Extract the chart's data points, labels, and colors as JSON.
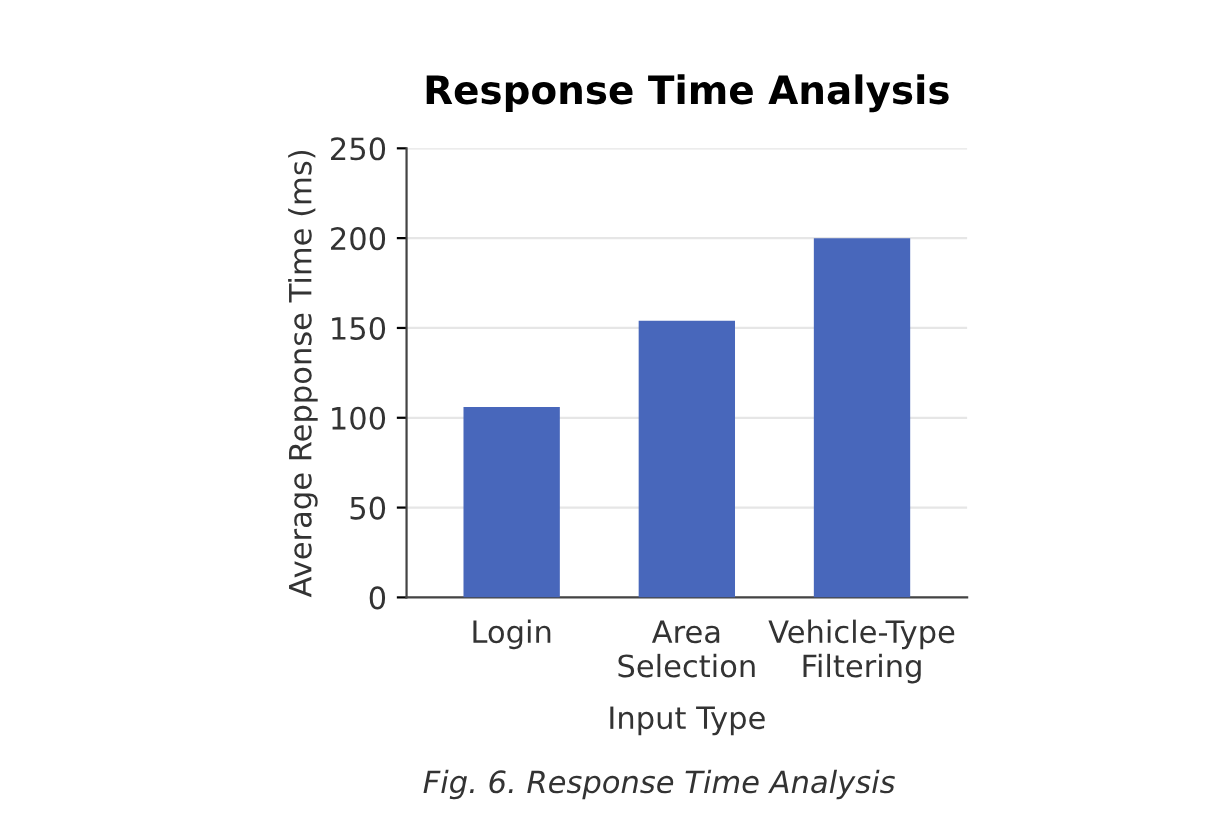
{
  "chart_data": {
    "type": "bar",
    "title": "Response Time Analysis",
    "xlabel": "Input Type",
    "ylabel": "Average Repponse Time (ms)",
    "categories": [
      "Login",
      "Area\nSelection",
      "Vehicle-Type\nFiltering"
    ],
    "values": [
      106,
      154,
      200
    ],
    "color": "#4867bb",
    "ylim": [
      0,
      250
    ],
    "yticks": [
      0,
      50,
      100,
      150,
      200,
      250
    ],
    "grid": "y",
    "annotations": [
      "Fig. 6. Response Time Analysis"
    ]
  }
}
